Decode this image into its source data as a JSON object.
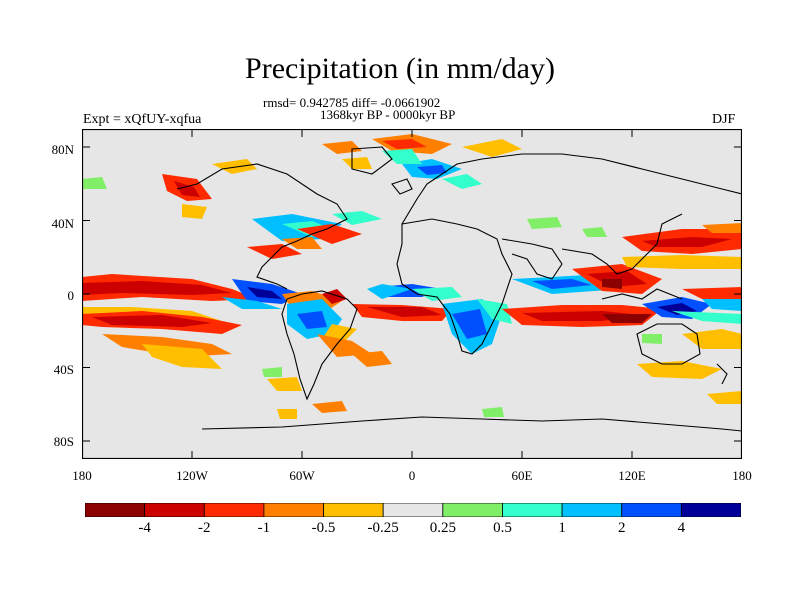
{
  "title": "Precipitation (in mm/day)",
  "stats": "rmsd= 0.942785  diff= -0.0661902",
  "period": "1368kyr BP - 0000kyr BP",
  "experiment": "Expt = xQfUY-xqfua",
  "season": "DJF",
  "y_ticks": [
    "80N",
    "40N",
    "0",
    "40S",
    "80S"
  ],
  "x_ticks": [
    "180",
    "120W",
    "60W",
    "0",
    "60E",
    "120E",
    "180"
  ],
  "colorbar": {
    "labels": [
      "-4",
      "-2",
      "-1",
      "-0.5",
      "-0.25",
      "0.25",
      "0.5",
      "1",
      "2",
      "4"
    ],
    "colors": [
      "#8b0000",
      "#cc0000",
      "#ff2a00",
      "#ff8000",
      "#ffbf00",
      "#e6e6e6",
      "#80ee66",
      "#33ffcc",
      "#00c0ff",
      "#0050ff",
      "#000099"
    ]
  },
  "colors": {
    "land_ocean": "#e6e6e6",
    "coastline": "#000000"
  }
}
